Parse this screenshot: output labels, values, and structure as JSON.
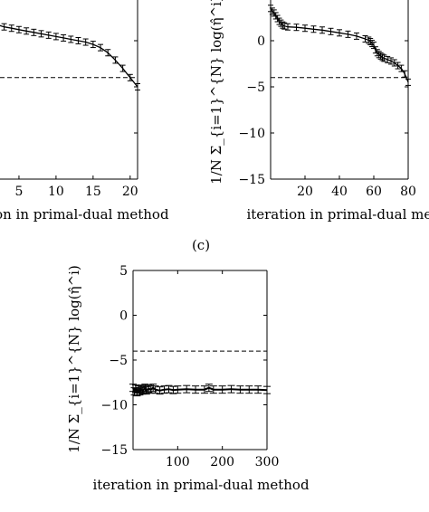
{
  "panel_c_label": "(c)",
  "chart_data": [
    {
      "id": "panel-a",
      "type": "line",
      "xlabel": "iteration in primal-dual method",
      "ylabel": "",
      "xlim": [
        0,
        21
      ],
      "ylim": [
        -15,
        5
      ],
      "xticks": [
        5,
        10,
        15,
        20
      ],
      "xtick_labels": [
        "5",
        "10",
        "15",
        "20"
      ],
      "yticks": [],
      "ytick_labels": [],
      "reference_line_y": -4,
      "error_bars": true,
      "series": [
        {
          "x": [
            0,
            1,
            2,
            3,
            4,
            5,
            6,
            7,
            8,
            9,
            10,
            11,
            12,
            13,
            14,
            15,
            16,
            17,
            18,
            19,
            20,
            21
          ],
          "y": [
            3.0,
            2.2,
            1.75,
            1.5,
            1.35,
            1.2,
            1.05,
            0.9,
            0.75,
            0.6,
            0.45,
            0.3,
            0.15,
            0.0,
            -0.15,
            -0.4,
            -0.75,
            -1.3,
            -2.1,
            -3.0,
            -4.0,
            -5.0
          ]
        }
      ]
    },
    {
      "id": "panel-b",
      "type": "line",
      "xlabel": "iteration in primal-dual method",
      "ylabel": "1/N Σ_{i=1}^{N} log(η̂^i)",
      "xlim": [
        0,
        80
      ],
      "ylim": [
        -15,
        5
      ],
      "xticks": [
        20,
        40,
        60,
        80
      ],
      "xtick_labels": [
        "20",
        "40",
        "60",
        "80"
      ],
      "yticks": [
        5,
        0,
        -5,
        -10,
        -15
      ],
      "ytick_labels": [
        "5",
        "0",
        "−5",
        "−10",
        "−15"
      ],
      "reference_line_y": -4,
      "error_bars": true,
      "series": [
        {
          "x": [
            0,
            1,
            2,
            3,
            4,
            5,
            6,
            7,
            8,
            10,
            15,
            20,
            25,
            30,
            35,
            40,
            45,
            50,
            55,
            57,
            58,
            59,
            60,
            61,
            62,
            63,
            64,
            65,
            66,
            68,
            70,
            72,
            74,
            76,
            78,
            80
          ],
          "y": [
            3.5,
            3.2,
            3.0,
            2.7,
            2.4,
            2.1,
            1.9,
            1.7,
            1.6,
            1.5,
            1.45,
            1.35,
            1.25,
            1.15,
            1.0,
            0.85,
            0.7,
            0.5,
            0.2,
            0.05,
            -0.1,
            -0.3,
            -0.5,
            -1.0,
            -1.3,
            -1.5,
            -1.65,
            -1.8,
            -1.9,
            -2.05,
            -2.2,
            -2.4,
            -2.7,
            -3.0,
            -3.6,
            -4.5
          ]
        }
      ]
    },
    {
      "id": "panel-c",
      "type": "line",
      "xlabel": "iteration in primal-dual method",
      "ylabel": "1/N Σ_{i=1}^{N} log(η̂^i)",
      "xlim": [
        0,
        300
      ],
      "ylim": [
        -15,
        5
      ],
      "xticks": [
        100,
        200,
        300
      ],
      "xtick_labels": [
        "100",
        "200",
        "300"
      ],
      "yticks": [
        5,
        0,
        -5,
        -10,
        -15
      ],
      "ytick_labels": [
        "5",
        "0",
        "−5",
        "−10",
        "−15"
      ],
      "reference_line_y": -4,
      "error_bars": true,
      "series": [
        {
          "x": [
            0,
            3,
            6,
            9,
            12,
            15,
            18,
            21,
            24,
            27,
            30,
            35,
            40,
            45,
            50,
            60,
            70,
            80,
            90,
            100,
            120,
            140,
            160,
            170,
            180,
            200,
            220,
            240,
            260,
            280,
            300
          ],
          "y": [
            -8.1,
            -8.5,
            -8.2,
            -8.6,
            -8.3,
            -8.5,
            -8.2,
            -8.4,
            -8.3,
            -8.1,
            -8.4,
            -8.2,
            -8.3,
            -8.1,
            -8.3,
            -8.4,
            -8.3,
            -8.25,
            -8.35,
            -8.3,
            -8.25,
            -8.3,
            -8.3,
            -8.1,
            -8.3,
            -8.3,
            -8.25,
            -8.3,
            -8.3,
            -8.3,
            -8.35
          ]
        }
      ]
    }
  ]
}
